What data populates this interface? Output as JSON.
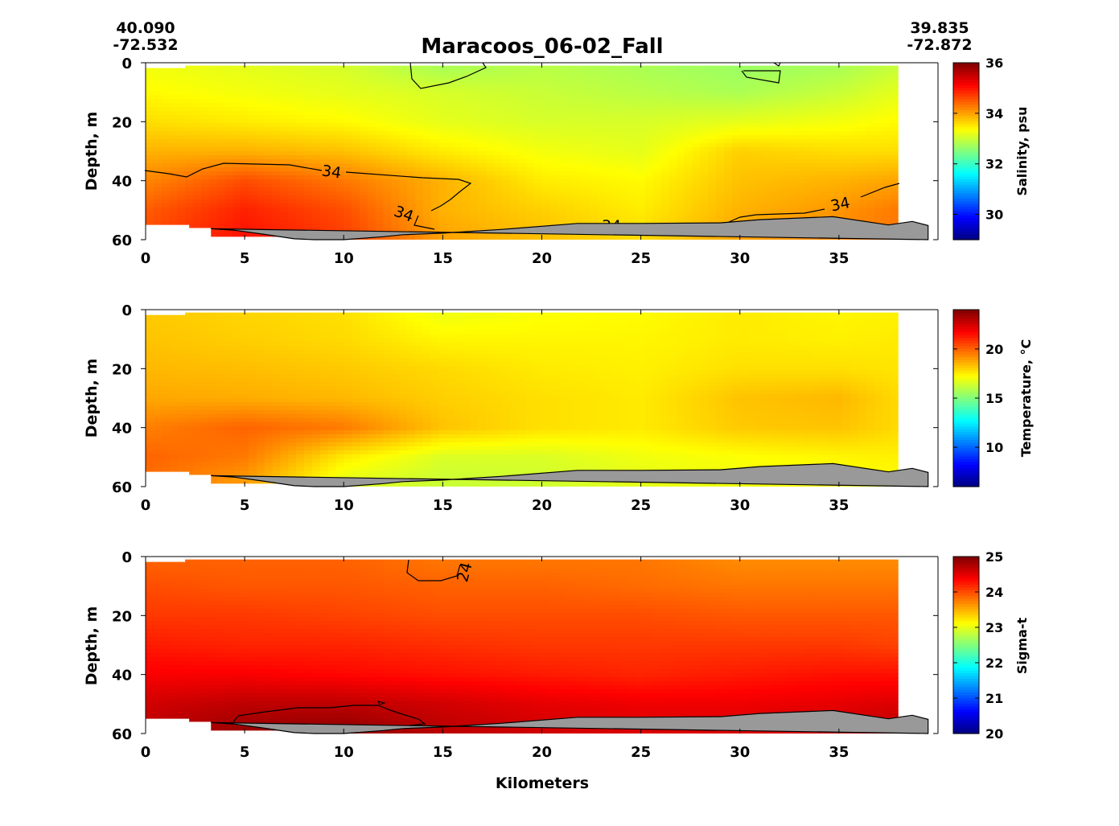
{
  "title": "Maracoos_06-02_Fall",
  "start_coord": {
    "lat": "40.090",
    "lon": "-72.532"
  },
  "end_coord": {
    "lat": "39.835",
    "lon": "-72.872"
  },
  "xlabel": "Kilometers",
  "ylabel": "Depth, m",
  "colors": {
    "bathymetry": "#999999",
    "contour": "#000000",
    "axis": "#000000"
  },
  "chart_data": [
    {
      "type": "heatmap",
      "variable": "salinity",
      "colorbar_label": "Salinity, psu",
      "colorbar_range": [
        29,
        36
      ],
      "colorbar_ticks": [
        30,
        32,
        34,
        36
      ],
      "xlim": [
        0,
        40
      ],
      "ylim": [
        60,
        0
      ],
      "x_ticks": [
        0,
        5,
        10,
        15,
        20,
        25,
        30,
        35
      ],
      "y_ticks": [
        0,
        20,
        40,
        60
      ],
      "grid": false,
      "section_x_range": [
        0,
        38
      ],
      "field": {
        "x": [
          0,
          5,
          10,
          15,
          20,
          25,
          30,
          35,
          38
        ],
        "depth": [
          2,
          10,
          20,
          30,
          40,
          50,
          58
        ],
        "values": [
          [
            33.3,
            33.2,
            33.1,
            32.8,
            32.9,
            32.8,
            32.7,
            32.8,
            33.0
          ],
          [
            33.4,
            33.3,
            33.2,
            33.1,
            33.0,
            32.9,
            32.8,
            33.0,
            33.2
          ],
          [
            33.6,
            33.5,
            33.4,
            33.2,
            33.1,
            33.1,
            33.2,
            33.3,
            33.4
          ],
          [
            33.9,
            33.9,
            33.8,
            33.5,
            33.3,
            33.2,
            33.7,
            33.6,
            33.6
          ],
          [
            34.2,
            34.6,
            34.3,
            33.9,
            33.5,
            33.4,
            33.8,
            33.9,
            34.0
          ],
          [
            34.5,
            34.9,
            34.6,
            33.9,
            33.7,
            33.5,
            33.9,
            34.1,
            34.3
          ],
          [
            34.6,
            35.0,
            34.7,
            34.0,
            33.8,
            33.6,
            34.0,
            34.2,
            34.3
          ]
        ]
      },
      "contour_level": 34,
      "contour_labels": [
        "34",
        "34",
        "34",
        "34"
      ]
    },
    {
      "type": "heatmap",
      "variable": "temperature",
      "colorbar_label": "Temperature,",
      "colorbar_unit": "°C",
      "colorbar_range": [
        6,
        24
      ],
      "colorbar_ticks": [
        10,
        15,
        20
      ],
      "xlim": [
        0,
        40
      ],
      "ylim": [
        60,
        0
      ],
      "x_ticks": [
        0,
        5,
        10,
        15,
        20,
        25,
        30,
        35
      ],
      "y_ticks": [
        0,
        20,
        40,
        60
      ],
      "grid": false,
      "section_x_range": [
        0,
        38
      ],
      "field": {
        "x": [
          0,
          5,
          10,
          15,
          20,
          25,
          30,
          35,
          38
        ],
        "depth": [
          2,
          10,
          20,
          30,
          40,
          50,
          58
        ],
        "values": [
          [
            18.2,
            18.0,
            17.8,
            17.0,
            17.2,
            17.3,
            17.6,
            17.4,
            17.5
          ],
          [
            18.3,
            18.1,
            17.9,
            17.4,
            17.4,
            17.4,
            17.6,
            17.5,
            17.6
          ],
          [
            18.5,
            18.4,
            18.2,
            17.9,
            17.6,
            17.5,
            17.8,
            17.8,
            17.7
          ],
          [
            18.8,
            18.7,
            18.5,
            18.1,
            17.8,
            17.6,
            18.3,
            18.5,
            17.9
          ],
          [
            19.5,
            20.0,
            19.6,
            18.3,
            17.8,
            17.6,
            18.2,
            18.3,
            17.9
          ],
          [
            20.0,
            19.6,
            17.6,
            16.6,
            16.6,
            17.0,
            17.2,
            17.4,
            17.5
          ],
          [
            19.8,
            19.0,
            16.8,
            16.3,
            16.4,
            16.8,
            17.0,
            17.2,
            17.3
          ]
        ]
      }
    },
    {
      "type": "heatmap",
      "variable": "sigma-t",
      "colorbar_label": "Sigma-t",
      "colorbar_range": [
        20,
        25
      ],
      "colorbar_ticks": [
        20,
        21,
        22,
        23,
        24,
        25
      ],
      "xlim": [
        0,
        40
      ],
      "ylim": [
        60,
        0
      ],
      "x_ticks": [
        0,
        5,
        10,
        15,
        20,
        25,
        30,
        35
      ],
      "y_ticks": [
        0,
        20,
        40,
        60
      ],
      "grid": false,
      "section_x_range": [
        0,
        38
      ],
      "field": {
        "x": [
          0,
          5,
          10,
          15,
          20,
          25,
          30,
          35,
          38
        ],
        "depth": [
          2,
          10,
          20,
          30,
          40,
          50,
          58
        ],
        "values": [
          [
            23.9,
            23.9,
            23.9,
            23.8,
            23.8,
            23.8,
            23.7,
            23.7,
            23.7
          ],
          [
            24.0,
            23.95,
            23.95,
            23.9,
            23.9,
            23.85,
            23.8,
            23.8,
            23.8
          ],
          [
            24.1,
            24.1,
            24.05,
            24.0,
            24.0,
            24.0,
            23.95,
            23.95,
            23.95
          ],
          [
            24.25,
            24.2,
            24.2,
            24.15,
            24.1,
            24.1,
            24.1,
            24.1,
            24.05
          ],
          [
            24.4,
            24.4,
            24.35,
            24.3,
            24.25,
            24.2,
            24.25,
            24.3,
            24.3
          ],
          [
            24.6,
            24.7,
            24.7,
            24.6,
            24.5,
            24.45,
            24.45,
            24.5,
            24.55
          ],
          [
            24.7,
            24.85,
            24.9,
            24.7,
            24.6,
            24.55,
            24.55,
            24.6,
            24.7
          ]
        ]
      },
      "contour_level": 24,
      "contour_labels": [
        "24"
      ]
    }
  ],
  "bathymetry": {
    "x": [
      3.3,
      4.5,
      6,
      7.5,
      8.5,
      10,
      12,
      13,
      15,
      18,
      21.8,
      25,
      29,
      31,
      34.7,
      37.5,
      38.7,
      39.5,
      39.5
    ],
    "depth": [
      56.3,
      56.8,
      58.2,
      59.7,
      60,
      60,
      59,
      58.3,
      57.8,
      56.5,
      54.5,
      54.5,
      54.3,
      53.2,
      52.2,
      55,
      53.8,
      55.2,
      60
    ]
  }
}
